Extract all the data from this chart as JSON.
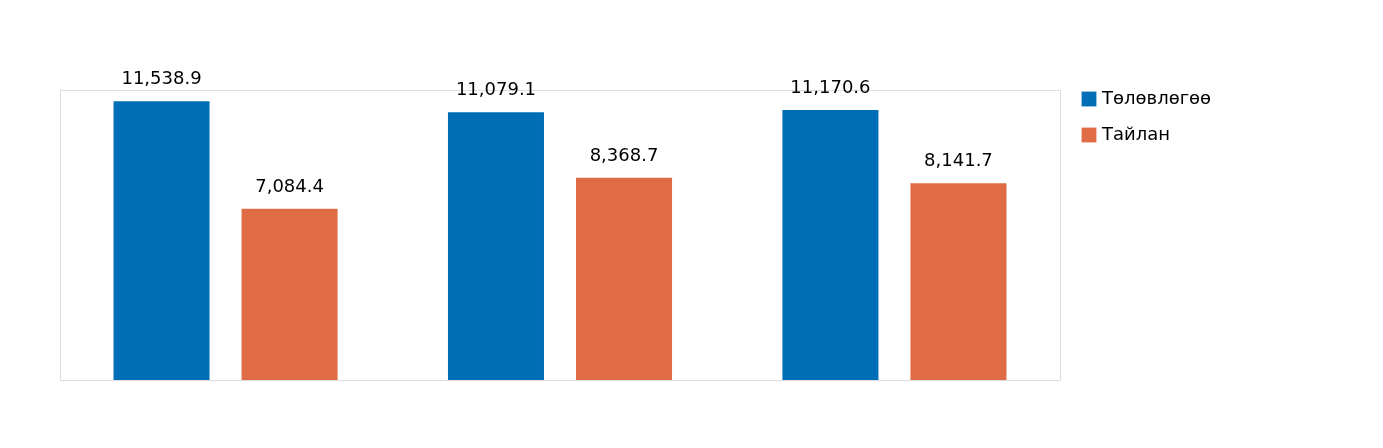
{
  "chart_data": {
    "type": "bar",
    "categories": [
      null,
      null,
      null
    ],
    "series": [
      {
        "name": "Төлөвлөгөө",
        "color": "#006eb6",
        "values": [
          11538.9,
          11079.1,
          11170.6
        ],
        "value_labels": [
          "11,538.9",
          "11,079.1",
          "11,170.6"
        ]
      },
      {
        "name": "Тайлан",
        "color": "#e06c45",
        "values": [
          7084.4,
          8368.7,
          8141.7
        ],
        "value_labels": [
          "7,084.4",
          "8,368.7",
          "8,141.7"
        ]
      }
    ],
    "legend": "top right",
    "grid": false
  }
}
